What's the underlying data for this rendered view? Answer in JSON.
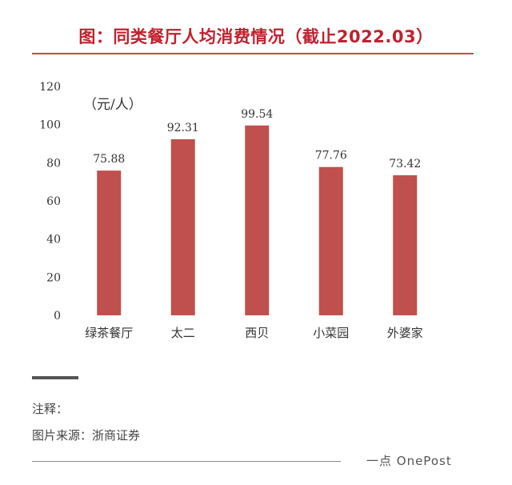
{
  "header": {
    "title": "图：同类餐厅人均消费情况（截止2022.03）"
  },
  "chart_data": {
    "type": "bar",
    "title": "图：同类餐厅人均消费情况（截止2022.03）",
    "unit_label": "（元/人）",
    "categories": [
      "绿茶餐厅",
      "太二",
      "西贝",
      "小菜园",
      "外婆家"
    ],
    "values": [
      75.88,
      92.31,
      99.54,
      77.76,
      73.42
    ],
    "value_labels": [
      "75.88",
      "92.31",
      "99.54",
      "77.76",
      "73.42"
    ],
    "yticks": [
      0,
      20,
      40,
      60,
      80,
      100,
      120
    ],
    "ylim": [
      0,
      120
    ],
    "grid": false,
    "legend": "none",
    "bar_color": "#c0504d"
  },
  "footer": {
    "note_label": "注释：",
    "source": "图片来源：浙商证券",
    "brand": "一点 OnePost"
  },
  "colors": {
    "title": "#c0212e",
    "bar": "#c0504d",
    "rule": "#c9484c"
  }
}
